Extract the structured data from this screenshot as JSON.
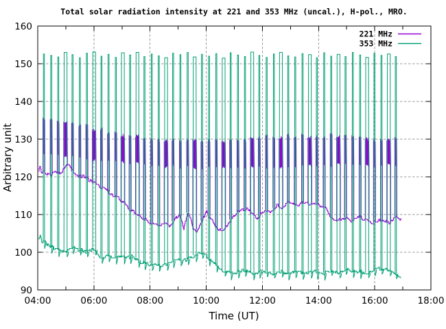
{
  "chart_data": {
    "type": "line",
    "title": "Total solar radiation intensity at 221 and 353 MHz (uncal.), H-pol., MRO.",
    "xlabel": "Time (UT)",
    "ylabel": "Arbitrary unit",
    "x_axis": {
      "start_hour": 4,
      "end_hour": 18,
      "labeled_tick_interval_hours": 2,
      "minor_tick_interval_hours": 1,
      "tick_labels": [
        "04:00",
        "06:00",
        "08:00",
        "10:00",
        "12:00",
        "14:00",
        "16:00",
        "18:00"
      ]
    },
    "y_axis": {
      "min": 90,
      "max": 160,
      "tick_interval": 10,
      "tick_labels": [
        "90",
        "100",
        "110",
        "120",
        "130",
        "140",
        "150",
        "160"
      ]
    },
    "grid": {
      "show": true,
      "style": "dashed",
      "color": "#9a9a9a"
    },
    "legend": {
      "position": "top-right-inside",
      "entries": [
        {
          "label": "221 MHz",
          "color": "#9400d3"
        },
        {
          "label": "353 MHz",
          "color": "#009e73"
        }
      ]
    },
    "data_start_hour": 4.03,
    "data_end_hour": 16.95,
    "series": [
      {
        "name": "221 MHz",
        "color": "#9400d3",
        "noise_amplitude": 0.45,
        "baseline_points": [
          [
            4.03,
            121.6
          ],
          [
            4.07,
            122.8
          ],
          [
            4.12,
            120.9
          ],
          [
            4.22,
            121.4
          ],
          [
            4.32,
            120.8
          ],
          [
            4.45,
            120.2
          ],
          [
            4.6,
            121.2
          ],
          [
            4.75,
            120.8
          ],
          [
            4.92,
            122.0
          ],
          [
            5.02,
            123.3
          ],
          [
            5.1,
            123.6
          ],
          [
            5.2,
            121.6
          ],
          [
            5.35,
            120.9
          ],
          [
            5.5,
            119.9
          ],
          [
            5.65,
            120.1
          ],
          [
            5.8,
            119.2
          ],
          [
            5.95,
            118.5
          ],
          [
            6.1,
            117.9
          ],
          [
            6.3,
            117.2
          ],
          [
            6.5,
            116.2
          ],
          [
            6.7,
            114.9
          ],
          [
            6.9,
            114.2
          ],
          [
            7.1,
            112.8
          ],
          [
            7.3,
            111.2
          ],
          [
            7.5,
            110.2
          ],
          [
            7.7,
            109.2
          ],
          [
            7.9,
            108.3
          ],
          [
            8.1,
            107.4
          ],
          [
            8.3,
            107.0
          ],
          [
            8.5,
            107.6
          ],
          [
            8.7,
            107.2
          ],
          [
            8.9,
            109.0
          ],
          [
            9.05,
            110.4
          ],
          [
            9.2,
            106.2
          ],
          [
            9.35,
            110.9
          ],
          [
            9.5,
            107.0
          ],
          [
            9.65,
            105.4
          ],
          [
            9.85,
            108.4
          ],
          [
            10.0,
            110.6
          ],
          [
            10.15,
            109.0
          ],
          [
            10.3,
            107.0
          ],
          [
            10.45,
            105.7
          ],
          [
            10.6,
            106.0
          ],
          [
            10.75,
            107.3
          ],
          [
            10.9,
            109.0
          ],
          [
            11.05,
            110.2
          ],
          [
            11.2,
            111.0
          ],
          [
            11.35,
            111.4
          ],
          [
            11.5,
            111.6
          ],
          [
            11.65,
            109.9
          ],
          [
            11.8,
            108.8
          ],
          [
            11.95,
            110.2
          ],
          [
            12.1,
            111.2
          ],
          [
            12.3,
            111.0
          ],
          [
            12.5,
            112.3
          ],
          [
            12.7,
            112.0
          ],
          [
            12.9,
            113.0
          ],
          [
            13.1,
            112.7
          ],
          [
            13.3,
            112.4
          ],
          [
            13.5,
            113.4
          ],
          [
            13.7,
            112.7
          ],
          [
            13.9,
            113.1
          ],
          [
            14.1,
            112.1
          ],
          [
            14.25,
            111.5
          ],
          [
            14.4,
            109.8
          ],
          [
            14.55,
            108.7
          ],
          [
            14.7,
            108.3
          ],
          [
            14.85,
            109.0
          ],
          [
            15.0,
            109.3
          ],
          [
            15.15,
            108.2
          ],
          [
            15.3,
            108.8
          ],
          [
            15.45,
            109.4
          ],
          [
            15.6,
            108.4
          ],
          [
            15.75,
            108.8
          ],
          [
            15.9,
            108.0
          ],
          [
            16.05,
            107.9
          ],
          [
            16.2,
            108.6
          ],
          [
            16.35,
            108.2
          ],
          [
            16.5,
            107.7
          ],
          [
            16.65,
            108.8
          ],
          [
            16.78,
            109.8
          ],
          [
            16.9,
            108.8
          ],
          [
            16.95,
            109.2
          ]
        ],
        "calibration_bar_top": [
          [
            4.2,
            135.4
          ],
          [
            5.0,
            135.0
          ],
          [
            5.6,
            134.0
          ],
          [
            6.4,
            132.5
          ],
          [
            7.2,
            131.2
          ],
          [
            8.5,
            130.2
          ],
          [
            10.0,
            130.0
          ],
          [
            11.5,
            130.6
          ],
          [
            13.0,
            131.0
          ],
          [
            14.5,
            131.3
          ],
          [
            15.5,
            130.6
          ],
          [
            16.8,
            130.2
          ]
        ],
        "calibration_bar_bottom": [
          [
            4.2,
            125.6
          ],
          [
            5.5,
            124.8
          ],
          [
            6.5,
            123.8
          ],
          [
            8.0,
            122.7
          ],
          [
            10.0,
            122.3
          ],
          [
            12.0,
            122.4
          ],
          [
            14.0,
            122.8
          ],
          [
            16.8,
            122.7
          ]
        ]
      },
      {
        "name": "353 MHz",
        "color": "#009e73",
        "noise_amplitude": 0.4,
        "baseline_points": [
          [
            4.03,
            103.6
          ],
          [
            4.08,
            104.3
          ],
          [
            4.15,
            102.6
          ],
          [
            4.25,
            103.0
          ],
          [
            4.35,
            102.0
          ],
          [
            4.5,
            101.4
          ],
          [
            4.65,
            100.9
          ],
          [
            4.8,
            100.5
          ],
          [
            5.0,
            100.2
          ],
          [
            5.15,
            100.9
          ],
          [
            5.28,
            101.3
          ],
          [
            5.4,
            100.5
          ],
          [
            5.55,
            100.7
          ],
          [
            5.7,
            100.1
          ],
          [
            5.85,
            100.4
          ],
          [
            6.0,
            100.7
          ],
          [
            6.1,
            99.9
          ],
          [
            6.2,
            98.9
          ],
          [
            6.35,
            98.6
          ],
          [
            6.5,
            99.0
          ],
          [
            6.65,
            98.5
          ],
          [
            6.8,
            98.8
          ],
          [
            6.95,
            99.1
          ],
          [
            7.1,
            98.5
          ],
          [
            7.25,
            98.7
          ],
          [
            7.4,
            98.9
          ],
          [
            7.52,
            98.1
          ],
          [
            7.62,
            97.4
          ],
          [
            7.75,
            97.1
          ],
          [
            7.9,
            96.8
          ],
          [
            8.05,
            96.4
          ],
          [
            8.2,
            96.7
          ],
          [
            8.35,
            96.3
          ],
          [
            8.5,
            96.8
          ],
          [
            8.65,
            97.1
          ],
          [
            8.8,
            97.7
          ],
          [
            8.95,
            98.2
          ],
          [
            9.1,
            97.6
          ],
          [
            9.25,
            97.9
          ],
          [
            9.4,
            98.4
          ],
          [
            9.55,
            99.0
          ],
          [
            9.7,
            99.7
          ],
          [
            9.82,
            99.9
          ],
          [
            9.95,
            99.3
          ],
          [
            10.1,
            98.3
          ],
          [
            10.25,
            97.3
          ],
          [
            10.4,
            96.2
          ],
          [
            10.55,
            95.3
          ],
          [
            10.7,
            94.9
          ],
          [
            10.85,
            94.6
          ],
          [
            11.0,
            94.3
          ],
          [
            11.15,
            94.9
          ],
          [
            11.3,
            95.3
          ],
          [
            11.45,
            95.0
          ],
          [
            11.6,
            94.6
          ],
          [
            11.75,
            94.4
          ],
          [
            11.9,
            94.8
          ],
          [
            12.05,
            95.1
          ],
          [
            12.2,
            94.6
          ],
          [
            12.35,
            94.3
          ],
          [
            12.5,
            94.7
          ],
          [
            12.65,
            94.9
          ],
          [
            12.8,
            94.4
          ],
          [
            12.95,
            94.2
          ],
          [
            13.1,
            94.6
          ],
          [
            13.25,
            94.9
          ],
          [
            13.4,
            94.5
          ],
          [
            13.55,
            94.3
          ],
          [
            13.7,
            94.7
          ],
          [
            13.85,
            95.0
          ],
          [
            14.0,
            94.6
          ],
          [
            14.15,
            94.3
          ],
          [
            14.3,
            94.8
          ],
          [
            14.45,
            95.2
          ],
          [
            14.6,
            94.7
          ],
          [
            14.75,
            94.4
          ],
          [
            14.9,
            95.3
          ],
          [
            15.05,
            95.6
          ],
          [
            15.2,
            95.0
          ],
          [
            15.35,
            94.6
          ],
          [
            15.5,
            94.9
          ],
          [
            15.65,
            94.4
          ],
          [
            15.8,
            94.7
          ],
          [
            15.95,
            95.4
          ],
          [
            16.1,
            95.8
          ],
          [
            16.25,
            95.5
          ],
          [
            16.4,
            95.9
          ],
          [
            16.52,
            94.9
          ],
          [
            16.65,
            94.5
          ],
          [
            16.78,
            94.2
          ],
          [
            16.85,
            93.6
          ],
          [
            16.92,
            93.2
          ]
        ],
        "calibration_peaks": [
          152.6,
          152.2,
          151.8,
          153.0,
          152.4,
          151.6,
          152.8,
          153.1,
          152.0,
          152.5,
          151.7,
          152.9,
          152.3,
          153.0,
          151.9,
          152.6,
          152.1,
          151.6,
          152.8,
          152.4,
          153.0,
          151.8,
          152.5,
          152.0,
          152.7,
          151.5,
          152.9,
          152.3,
          151.9,
          153.1,
          152.2,
          151.7,
          152.6,
          153.0,
          152.1,
          151.8,
          152.7,
          152.4,
          151.6,
          152.9,
          152.0,
          152.5,
          151.9,
          153.0,
          152.3,
          151.7,
          152.8,
          152.2,
          152.6,
          151.9
        ],
        "calibration_dip_below_baseline": 1.6
      }
    ],
    "calibration": {
      "times_hours": [
        4.22,
        4.48,
        4.73,
        4.99,
        5.24,
        5.5,
        5.75,
        6.01,
        6.27,
        6.52,
        6.78,
        7.03,
        7.29,
        7.55,
        7.8,
        8.06,
        8.31,
        8.57,
        8.82,
        9.08,
        9.34,
        9.59,
        9.85,
        10.1,
        10.36,
        10.62,
        10.87,
        11.13,
        11.38,
        11.64,
        11.89,
        12.15,
        12.41,
        12.66,
        12.92,
        13.17,
        13.43,
        13.69,
        13.94,
        14.2,
        14.45,
        14.71,
        14.96,
        15.22,
        15.48,
        15.73,
        15.99,
        16.24,
        16.5,
        16.75
      ],
      "wide_indices": [
        3,
        7,
        11,
        13,
        17,
        21,
        25,
        29,
        33,
        37,
        41,
        45,
        48
      ],
      "normal_width_hours": 0.035,
      "wide_width_hours": 0.1
    }
  }
}
